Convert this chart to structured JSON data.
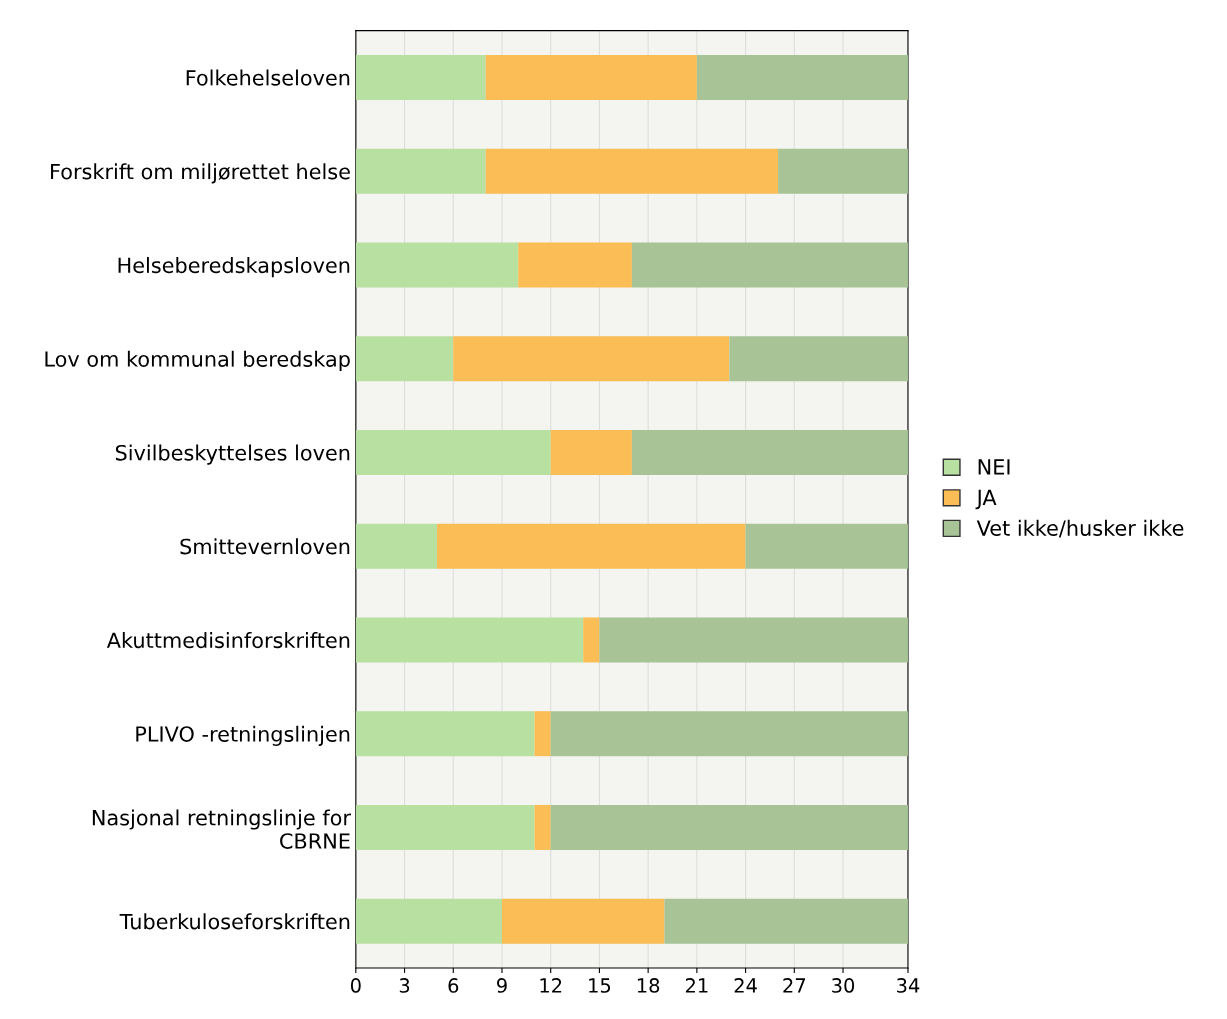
{
  "chart_data": {
    "type": "bar",
    "orientation": "horizontal",
    "stacked": true,
    "categories": [
      "Folkehelseloven",
      "Forskrift om miljørettet helse",
      "Helseberedskapsloven",
      "Lov om kommunal beredskap",
      "Sivilbeskyttelses loven",
      "Smittevernloven",
      "Akuttmedisinforskriften",
      "PLIVO -retningslinjen",
      "Nasjonal retningslinje for\nCBRNE",
      "Tuberkuloseforskriften"
    ],
    "series": [
      {
        "name": "NEI",
        "color": "#b8e0a0",
        "values": [
          8,
          8,
          10,
          6,
          12,
          5,
          14,
          11,
          11,
          9
        ]
      },
      {
        "name": "JA",
        "color": "#fbbd55",
        "values": [
          13,
          18,
          7,
          17,
          5,
          19,
          1,
          1,
          1,
          10
        ]
      },
      {
        "name": "Vet ikke/husker ikke",
        "color": "#a8c496",
        "values": [
          13,
          8,
          17,
          11,
          17,
          10,
          19,
          22,
          22,
          15
        ]
      }
    ],
    "xlim": [
      0,
      34
    ],
    "xticks": [
      0,
      3,
      6,
      9,
      12,
      15,
      18,
      21,
      24,
      27,
      30,
      34
    ],
    "grid": "x",
    "legend": "right"
  }
}
